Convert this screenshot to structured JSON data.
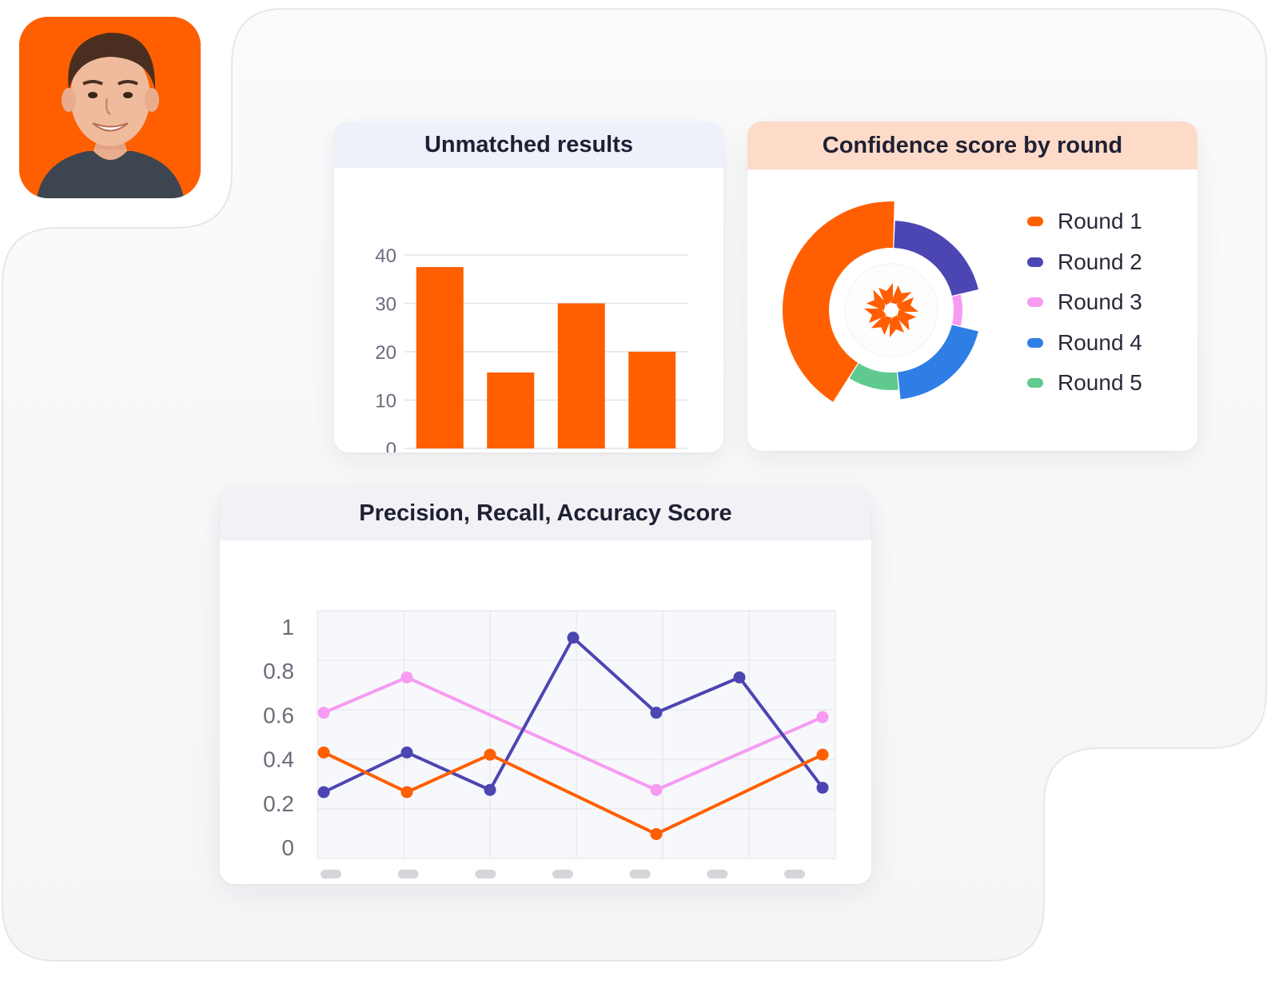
{
  "colors": {
    "brand_orange": "#ff5f00",
    "indigo": "#4b46b2",
    "pink": "#f79bf2",
    "blue": "#2f7ee6",
    "green": "#5fc98f",
    "grid": "#e2e3e8",
    "tick_placeholder": "#d6d6da"
  },
  "profile": {
    "icon": "user-avatar-icon"
  },
  "center_logo": {
    "icon": "orange-spiral-logo-icon"
  },
  "chart_data": [
    {
      "type": "bar",
      "title": "Unmatched results",
      "categories": [
        "",
        "",
        "",
        ""
      ],
      "values": [
        37.5,
        15.7,
        30,
        20
      ],
      "ylim": [
        0,
        40
      ],
      "yticks": [
        0,
        10,
        20,
        30,
        40
      ],
      "xlabel": "",
      "ylabel": "",
      "grid": true,
      "color": "#ff5f00"
    },
    {
      "type": "pie",
      "title": "Confidence score by round",
      "donut": true,
      "legend_position": "right",
      "slices": [
        {
          "label": "Round 1",
          "value": 40,
          "color": "#ff5f00"
        },
        {
          "label": "Round 2",
          "value": 20,
          "color": "#4b46b2"
        },
        {
          "label": "Round 3",
          "value": 7,
          "color": "#f79bf2"
        },
        {
          "label": "Round 4",
          "value": 19,
          "color": "#2f7ee6"
        },
        {
          "label": "Round 5",
          "value": 10,
          "color": "#5fc98f"
        }
      ]
    },
    {
      "type": "line",
      "title": "Precision, Recall, Accuracy Score",
      "x": [
        1,
        2,
        3,
        4,
        5,
        6,
        7
      ],
      "ylim": [
        0,
        1
      ],
      "yticks": [
        "0",
        "0.2",
        "0.4",
        "0.6",
        "0.8",
        "1"
      ],
      "ytick_values": [
        0,
        0.2,
        0.4,
        0.6,
        0.8,
        1
      ],
      "xlabel": "",
      "ylabel": "",
      "grid": true,
      "series": [
        {
          "values": [
            0.61,
            0.77,
            null,
            null,
            0.26,
            null,
            0.59
          ],
          "color": "#f79bf2"
        },
        {
          "values": [
            0.25,
            0.43,
            0.26,
            0.95,
            0.61,
            0.77,
            0.27
          ],
          "color": "#4b46b2"
        },
        {
          "values": [
            0.43,
            0.25,
            0.42,
            null,
            0.06,
            null,
            0.42
          ],
          "color": "#ff5f00"
        }
      ]
    }
  ]
}
